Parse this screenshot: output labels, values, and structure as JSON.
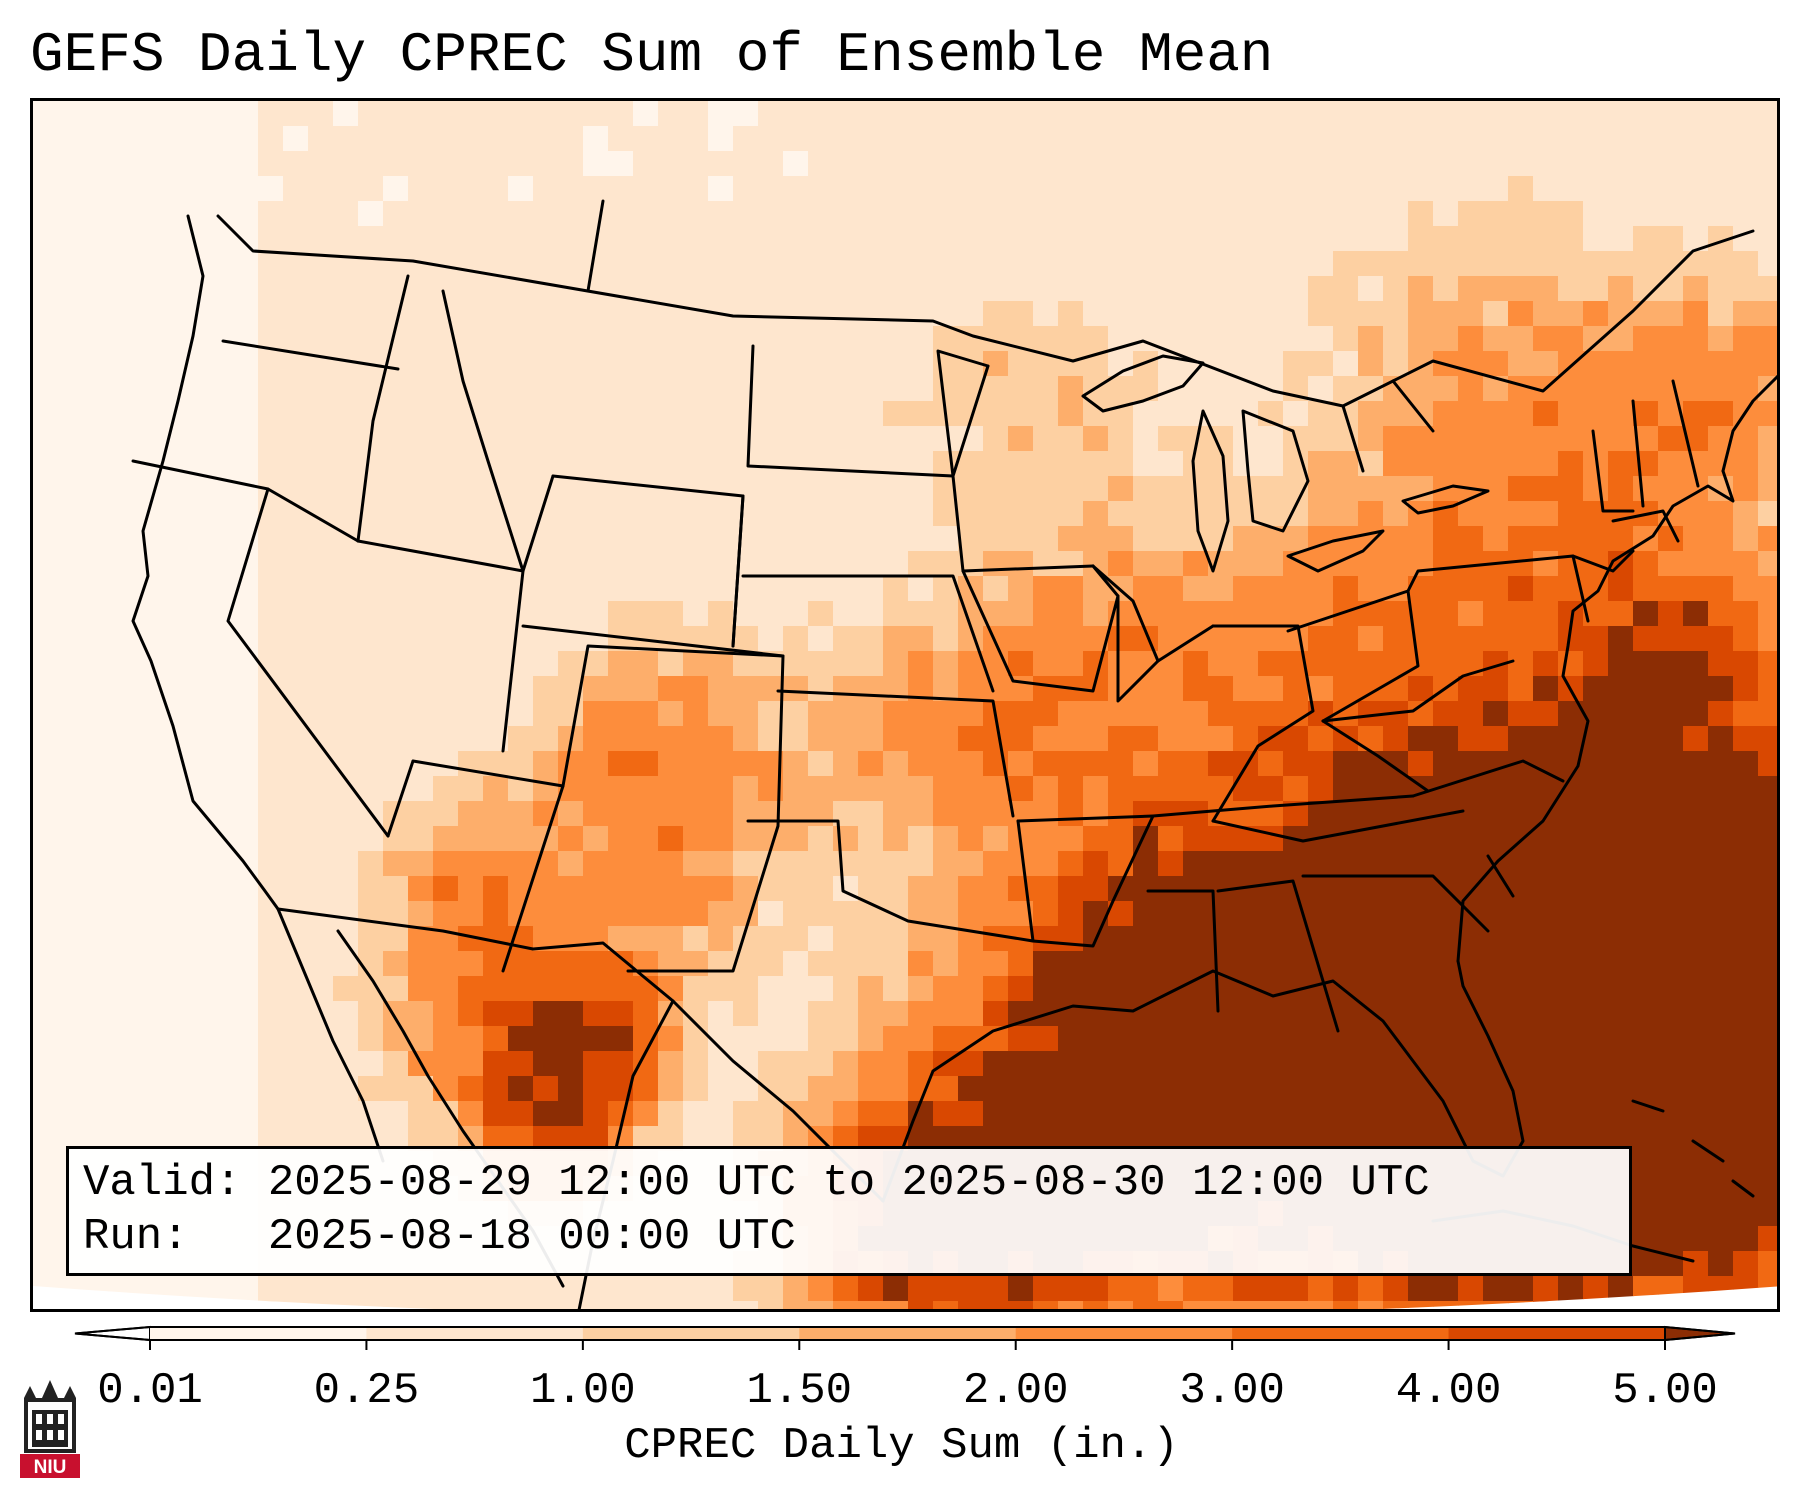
{
  "title": "GEFS Daily CPREC Sum of Ensemble Mean",
  "info": {
    "valid_label": "Valid:",
    "valid_value": "2025-08-29 12:00 UTC to 2025-08-30 12:00 UTC",
    "run_label": "Run:",
    "run_value": "2025-08-18 00:00 UTC"
  },
  "colorbar": {
    "label": "CPREC Daily Sum (in.)",
    "ticks": [
      "0.01",
      "0.25",
      "1.00",
      "1.50",
      "2.00",
      "3.00",
      "4.00",
      "5.00"
    ],
    "levels": [
      0.01,
      0.25,
      1.0,
      1.5,
      2.0,
      3.0,
      4.0,
      5.0
    ],
    "colors": [
      "#fff5eb",
      "#fee6ce",
      "#fdd0a2",
      "#fdae6b",
      "#fd8d3c",
      "#f16913",
      "#d94801",
      "#8c2d04"
    ],
    "extend": "both"
  },
  "logo": {
    "text": "NIU",
    "color": "#c8102e",
    "icon": "university-tower-icon"
  },
  "map": {
    "projection": "lambert-conformal",
    "region": "CONUS",
    "overlays": [
      "state-borders",
      "country-borders",
      "coastlines"
    ]
  }
}
